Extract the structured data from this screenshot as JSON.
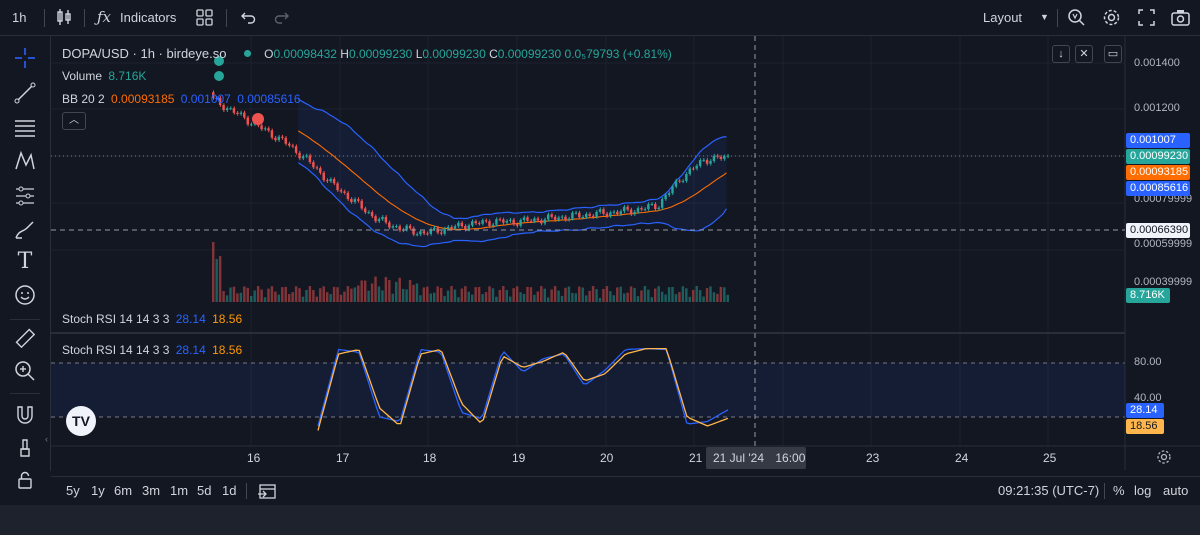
{
  "toolbar": {
    "interval": "1h",
    "indicators_label": "Indicators",
    "layout_label": "Layout"
  },
  "legend": {
    "symbol": "DOPA/USD · 1h · birdeye.so",
    "o_label": "O",
    "o_value": "0.00098432",
    "h_label": "H",
    "h_value": "0.00099230",
    "l_label": "L",
    "l_value": "0.00099230",
    "c_label": "C",
    "c_value": "0.00099230",
    "change": "0.0₅79793 (+0.81%)",
    "volume_label": "Volume",
    "volume_value": "8.716K",
    "bb_label": "BB 20 2",
    "bb_basis": "0.00093185",
    "bb_upper": "0.001007",
    "bb_lower": "0.00085616",
    "stoch1_label": "Stoch RSI 14 14 3 3",
    "stoch1_k": "28.14",
    "stoch1_d": "18.56",
    "stoch2_label": "Stoch RSI 14 14 3 3",
    "stoch2_k": "28.14",
    "stoch2_d": "18.56"
  },
  "price_axis": {
    "ticks": [
      "0.001400",
      "0.001200",
      "0.00079999",
      "0.00059999",
      "0.00039999"
    ],
    "tags": {
      "bb_upper": "0.001007",
      "last": "0.00099230",
      "bb_basis": "0.00093185",
      "bb_lower": "0.00085616",
      "crosshair": "0.00066390",
      "volume": "8.716K"
    }
  },
  "stoch_axis": {
    "ticks": [
      "80.00",
      "40.00"
    ],
    "tags": {
      "k": "28.14",
      "d": "18.56"
    }
  },
  "time_axis": {
    "ticks": [
      "16",
      "17",
      "18",
      "19",
      "20",
      "21",
      "23",
      "24",
      "25"
    ],
    "crosshair_date": "21 Jul '24",
    "crosshair_time": "16:00"
  },
  "bottom": {
    "ranges": [
      "5y",
      "1y",
      "6m",
      "3m",
      "1m",
      "5d",
      "1d"
    ],
    "clock": "09:21:35 (UTC-7)",
    "percent": "%",
    "log": "log",
    "auto": "auto"
  },
  "colors": {
    "bg": "#131722",
    "up": "#26a69a",
    "down": "#ef5350",
    "bb_band": "#2962ff",
    "bb_basis": "#ff6d00",
    "stoch_k": "#2962ff",
    "stoch_d": "#ffb74d"
  },
  "chart_data": {
    "type": "line",
    "title": "DOPA/USD · 1h · birdeye.so",
    "series": [
      {
        "name": "Volume",
        "values": [
          8.716
        ]
      }
    ],
    "close_path": [
      0.00124,
      0.00118,
      0.00112,
      0.00106,
      0.00098,
      0.00088,
      0.0008,
      0.00072,
      0.00068,
      0.00066,
      0.00068,
      0.0007,
      0.00071,
      0.00071,
      0.00072,
      0.00073,
      0.00074,
      0.00075,
      0.00076,
      0.00078,
      0.0009,
      0.00098,
      0.00099
    ],
    "stoch_k_path": [
      10,
      95,
      92,
      20,
      15,
      95,
      92,
      25,
      18,
      94,
      70,
      85,
      90,
      55,
      72,
      95,
      96,
      95,
      12,
      15,
      28
    ],
    "stoch_d_path": [
      5,
      90,
      95,
      30,
      10,
      90,
      95,
      35,
      12,
      88,
      75,
      82,
      92,
      60,
      68,
      90,
      96,
      96,
      20,
      10,
      18.56
    ]
  }
}
